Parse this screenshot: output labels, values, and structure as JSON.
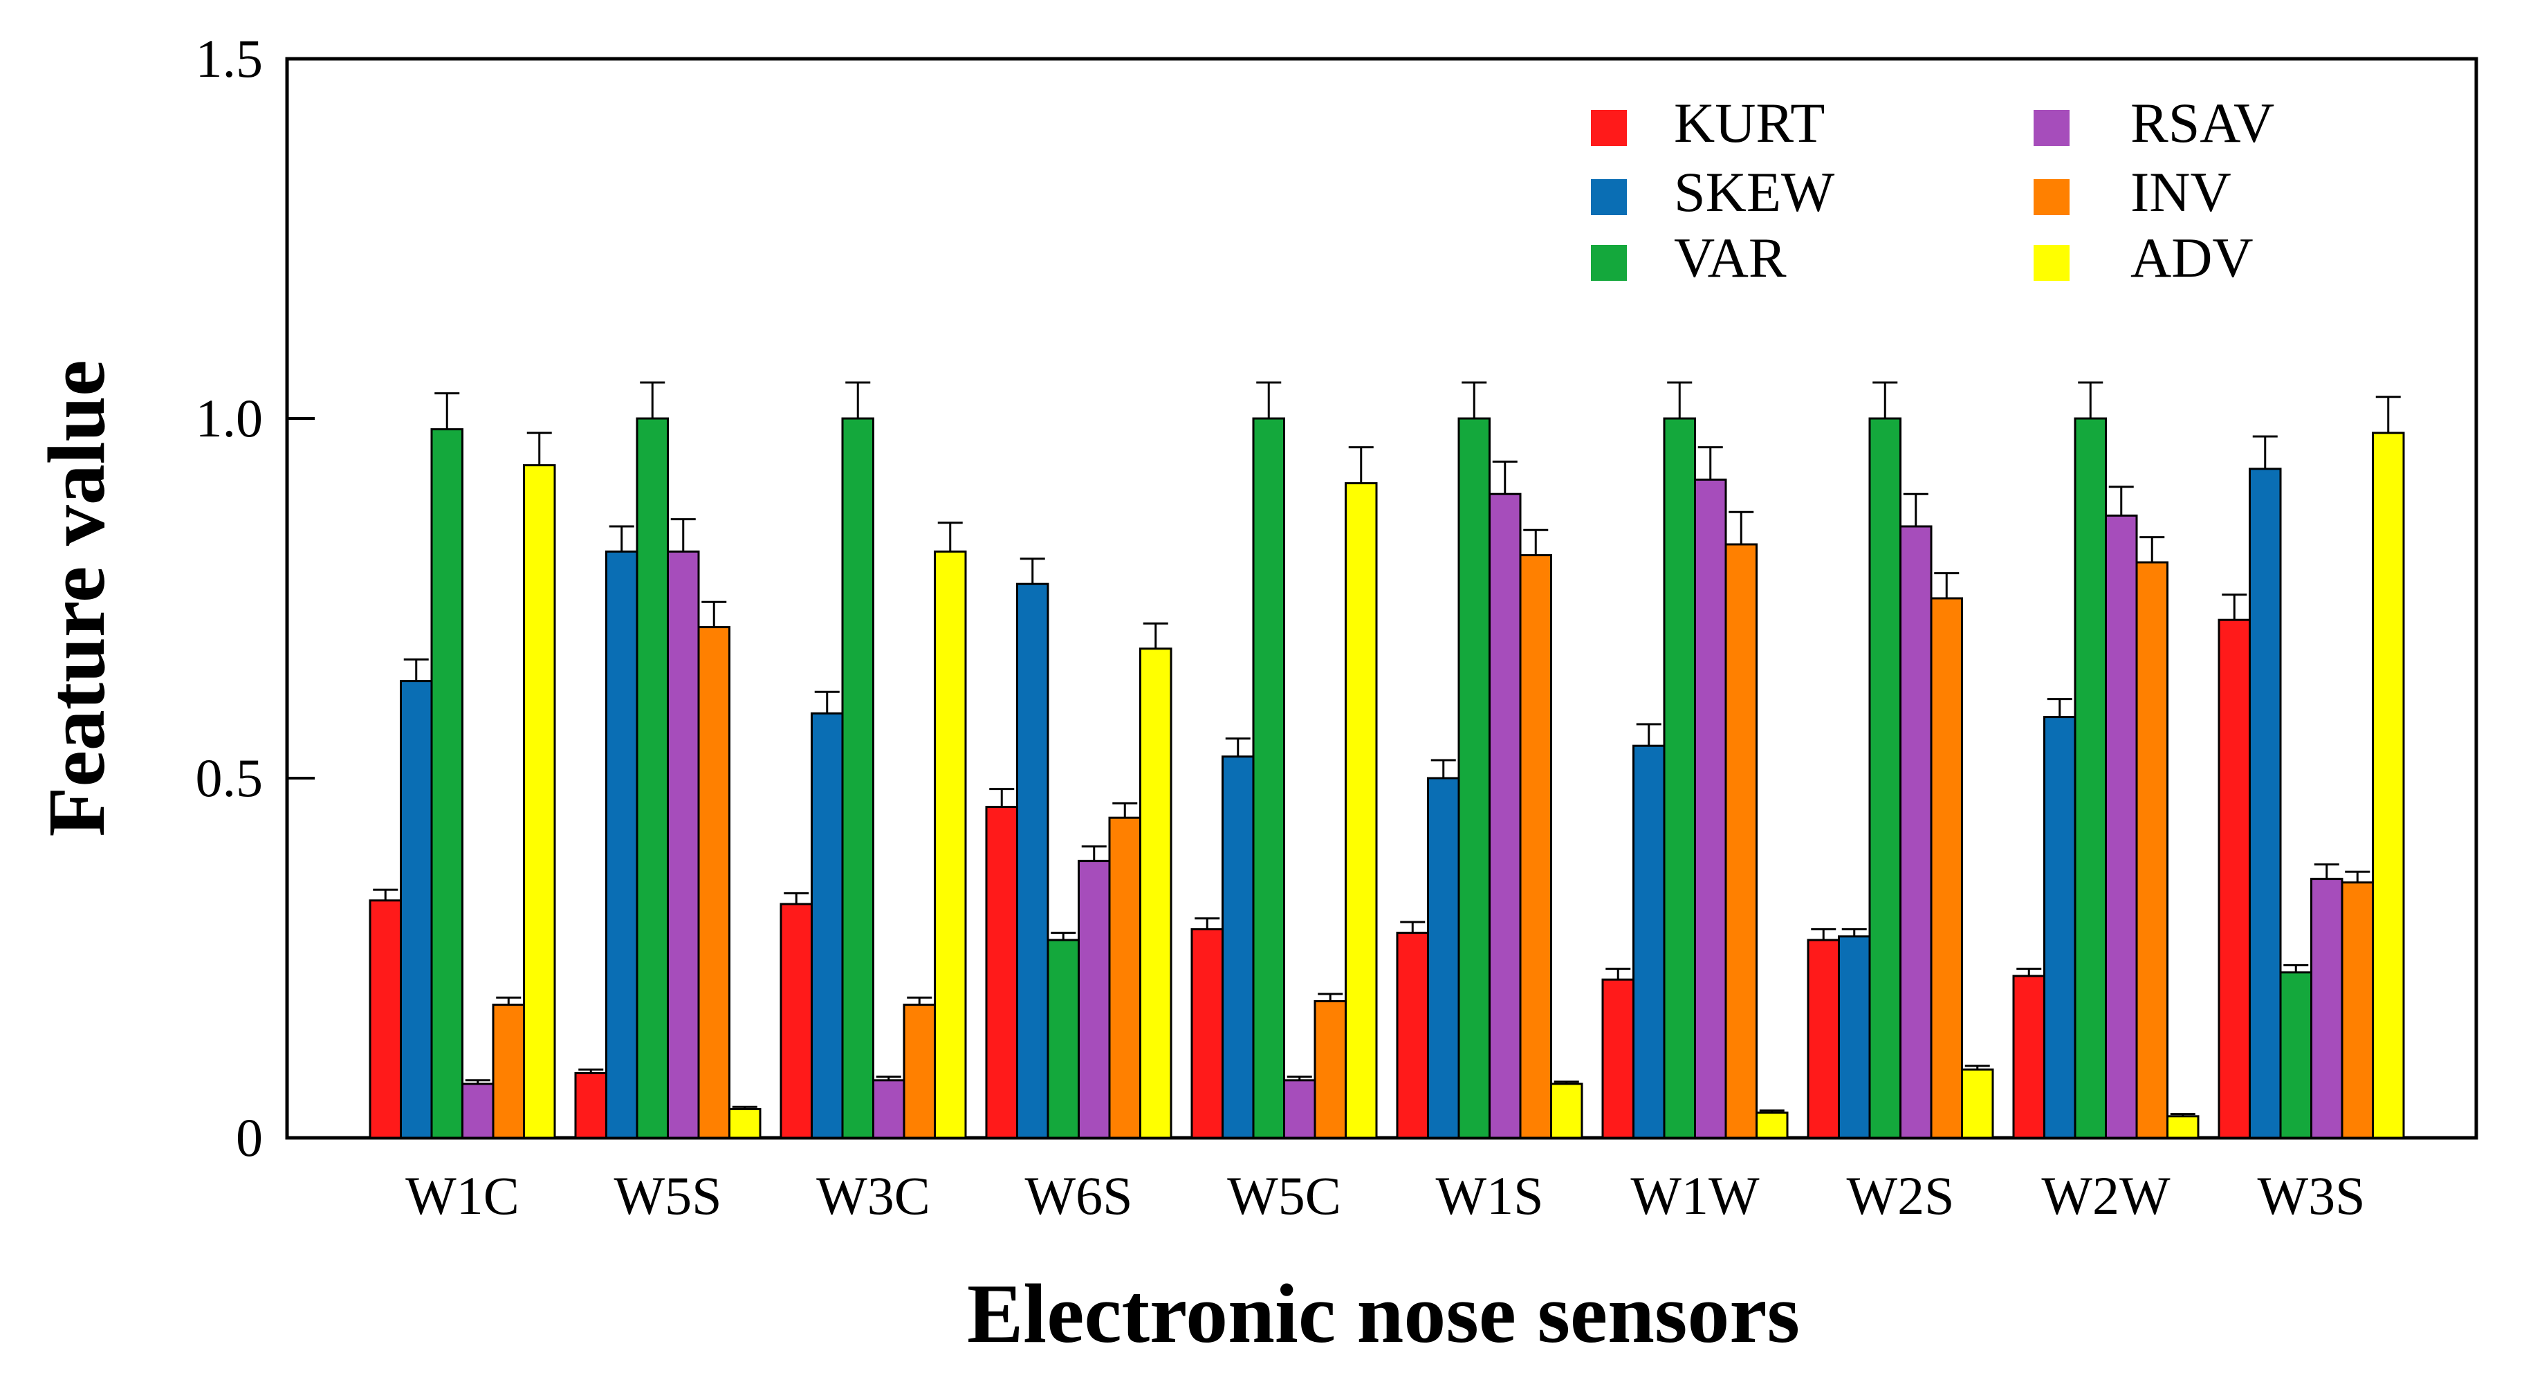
{
  "chart_data": {
    "type": "bar",
    "title": "",
    "xlabel": "Electronic nose sensors",
    "ylabel": "Feature value",
    "ylim": [
      0,
      1.5
    ],
    "yticks": [
      {
        "value": 0,
        "label": "0"
      },
      {
        "value": 0.5,
        "label": "0.5"
      },
      {
        "value": 1.0,
        "label": "1.0"
      },
      {
        "value": 1.5,
        "label": "1.5"
      }
    ],
    "grid": false,
    "legend_position": "top-right",
    "categories": [
      "W1C",
      "W5S",
      "W3C",
      "W6S",
      "W5C",
      "W1S",
      "W1W",
      "W2S",
      "W2W",
      "W3S"
    ],
    "series": [
      {
        "name": "KURT",
        "color": "#ff1a1a",
        "values": [
          0.33,
          0.09,
          0.325,
          0.46,
          0.29,
          0.285,
          0.22,
          0.275,
          0.225,
          0.72
        ],
        "errors": [
          0.015,
          0.005,
          0.015,
          0.025,
          0.015,
          0.015,
          0.015,
          0.015,
          0.01,
          0.035
        ]
      },
      {
        "name": "SKEW",
        "color": "#0a6eb4",
        "values": [
          0.635,
          0.815,
          0.59,
          0.77,
          0.53,
          0.5,
          0.545,
          0.28,
          0.585,
          0.93
        ],
        "errors": [
          0.03,
          0.035,
          0.03,
          0.035,
          0.025,
          0.025,
          0.03,
          0.01,
          0.025,
          0.045
        ]
      },
      {
        "name": "VAR",
        "color": "#14a83c",
        "values": [
          0.985,
          1.0,
          1.0,
          0.275,
          1.0,
          1.0,
          1.0,
          1.0,
          1.0,
          0.23
        ],
        "errors": [
          0.05,
          0.05,
          0.05,
          0.01,
          0.05,
          0.05,
          0.05,
          0.05,
          0.05,
          0.01
        ]
      },
      {
        "name": "RSAV",
        "color": "#a64dbb",
        "values": [
          0.075,
          0.815,
          0.08,
          0.385,
          0.08,
          0.895,
          0.915,
          0.85,
          0.865,
          0.36
        ],
        "errors": [
          0.005,
          0.045,
          0.005,
          0.02,
          0.005,
          0.045,
          0.045,
          0.045,
          0.04,
          0.02
        ]
      },
      {
        "name": "INV",
        "color": "#ff8000",
        "values": [
          0.185,
          0.71,
          0.185,
          0.445,
          0.19,
          0.81,
          0.825,
          0.75,
          0.8,
          0.355
        ],
        "errors": [
          0.01,
          0.035,
          0.01,
          0.02,
          0.01,
          0.035,
          0.045,
          0.035,
          0.035,
          0.015
        ]
      },
      {
        "name": "ADV",
        "color": "#ffff00",
        "values": [
          0.935,
          0.04,
          0.815,
          0.68,
          0.91,
          0.075,
          0.035,
          0.095,
          0.03,
          0.98
        ],
        "errors": [
          0.045,
          0.003,
          0.04,
          0.035,
          0.05,
          0.003,
          0.003,
          0.005,
          0.003,
          0.05
        ]
      }
    ]
  }
}
